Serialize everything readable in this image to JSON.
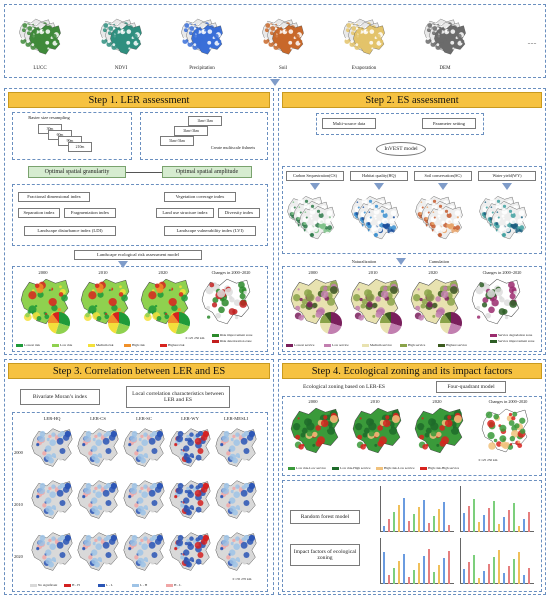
{
  "top_inputs": [
    {
      "label": "LUCC",
      "color": "#3f8a3a"
    },
    {
      "label": "NDVI",
      "color": "#2f8f7f"
    },
    {
      "label": "Precipitation",
      "color": "#3a6fd8"
    },
    {
      "label": "Soil",
      "color": "#c8682a"
    },
    {
      "label": "Evaporation",
      "color": "#e3c36a"
    },
    {
      "label": "DEM",
      "color": "#6b6b6b"
    }
  ],
  "top_ellipsis": "......",
  "step1": {
    "title": "Step 1. LER assessment",
    "resample_title": "Raster size resampling",
    "resample_sizes": [
      "30m",
      "60m",
      "90m",
      "210m"
    ],
    "fishnet_sizes": [
      "1km×1km",
      "3km×3km",
      "5km×5km"
    ],
    "fishnet_label": "Create multiscale fishnets",
    "granularity": "Optimal spatial granularity",
    "amplitude": "Optimal spatial amplitude",
    "indices_left": [
      "Fractional dimensional index",
      "Separation index",
      "Fragmentation index"
    ],
    "indices_right": [
      "Vegetation coverage index",
      "Land use structure index",
      "Diversity index"
    ],
    "ldi": "Landscape disturbance index (LDI)",
    "lvi": "Landscape vulnerability index (LVI)",
    "model": "Landscape ecological risk assessment model",
    "years": [
      "2000",
      "2010",
      "2020"
    ],
    "changes": "Changes in 2000~2020",
    "legend": [
      {
        "label": "Lowest risk",
        "color": "#1f9a3a"
      },
      {
        "label": "Low risk",
        "color": "#8fd14f"
      },
      {
        "label": "Medium risk",
        "color": "#f3e03b"
      },
      {
        "label": "High risk",
        "color": "#f0902a"
      },
      {
        "label": "Highest risk",
        "color": "#d7231f"
      }
    ],
    "change_legend": [
      {
        "label": "Risk improvement zone",
        "color": "#2b8a2b"
      },
      {
        "label": "Risk deterioration zone",
        "color": "#c21e1e"
      }
    ],
    "scale": "0  125  250 km"
  },
  "step2": {
    "title": "Step 2. ES assessment",
    "inputs": [
      "Multi-source data",
      "Parameter setting"
    ],
    "model": "InVEST  model",
    "services": [
      "Carbon Sequestration(CS)",
      "Habitat quality(HQ)",
      "Soil conservation(SC)",
      "Water yield(WY)"
    ],
    "naturalization": "Naturalization",
    "cumulation": "Cumulation",
    "years": [
      "2000",
      "2010",
      "2020"
    ],
    "changes": "Changes in 2000~2020",
    "legend": [
      {
        "label": "Lowest service",
        "color": "#7a1f5c"
      },
      {
        "label": "Low service",
        "color": "#c27fb0"
      },
      {
        "label": "Medium service",
        "color": "#e8e2b0"
      },
      {
        "label": "High service",
        "color": "#8aa34a"
      },
      {
        "label": "Highest service",
        "color": "#3b5a1e"
      }
    ],
    "change_legend": [
      {
        "label": "Service degradation zone",
        "color": "#9b2c6e"
      },
      {
        "label": "Service improvement zone",
        "color": "#2d5e25"
      }
    ]
  },
  "step3": {
    "title": "Step 3. Correlation between LER and ES",
    "bivariate": "Bivariate Moran’s index",
    "local": "Local correlation characteristics between LER and ES",
    "columns": [
      "LER-HQ",
      "LER-CS",
      "LER-SC",
      "LER-WY",
      "LER-MESLI"
    ],
    "rows": [
      "2000",
      "2010",
      "2020"
    ],
    "legend": [
      {
        "label": "No significant",
        "color": "#d9d9d9"
      },
      {
        "label": "H - H",
        "color": "#d32020"
      },
      {
        "label": "L - L",
        "color": "#2a55b5"
      },
      {
        "label": "L - H",
        "color": "#9ec3e6"
      },
      {
        "label": "H - L",
        "color": "#f0a6a6"
      }
    ],
    "scale": "0  135  270 km"
  },
  "step4": {
    "title": "Step 4. Ecological zoning and its impact factors",
    "zoning": "Ecological zoning based on LER-ES",
    "quadrant": "Four-quadrant model",
    "years": [
      "2000",
      "2010",
      "2020"
    ],
    "changes": "Changes in 2000~2020",
    "legend": [
      {
        "label": "Low risk-Low service",
        "color": "#3a9a3a"
      },
      {
        "label": "Low risk-High service",
        "color": "#1e6b2a"
      },
      {
        "label": "High risk-Low service",
        "color": "#f1c27d"
      },
      {
        "label": "High risk-High service",
        "color": "#d7231f"
      }
    ],
    "rf": "Random forest model",
    "impact": "Impact  factors of ecological zoning",
    "scale": "0  125  250 km"
  }
}
